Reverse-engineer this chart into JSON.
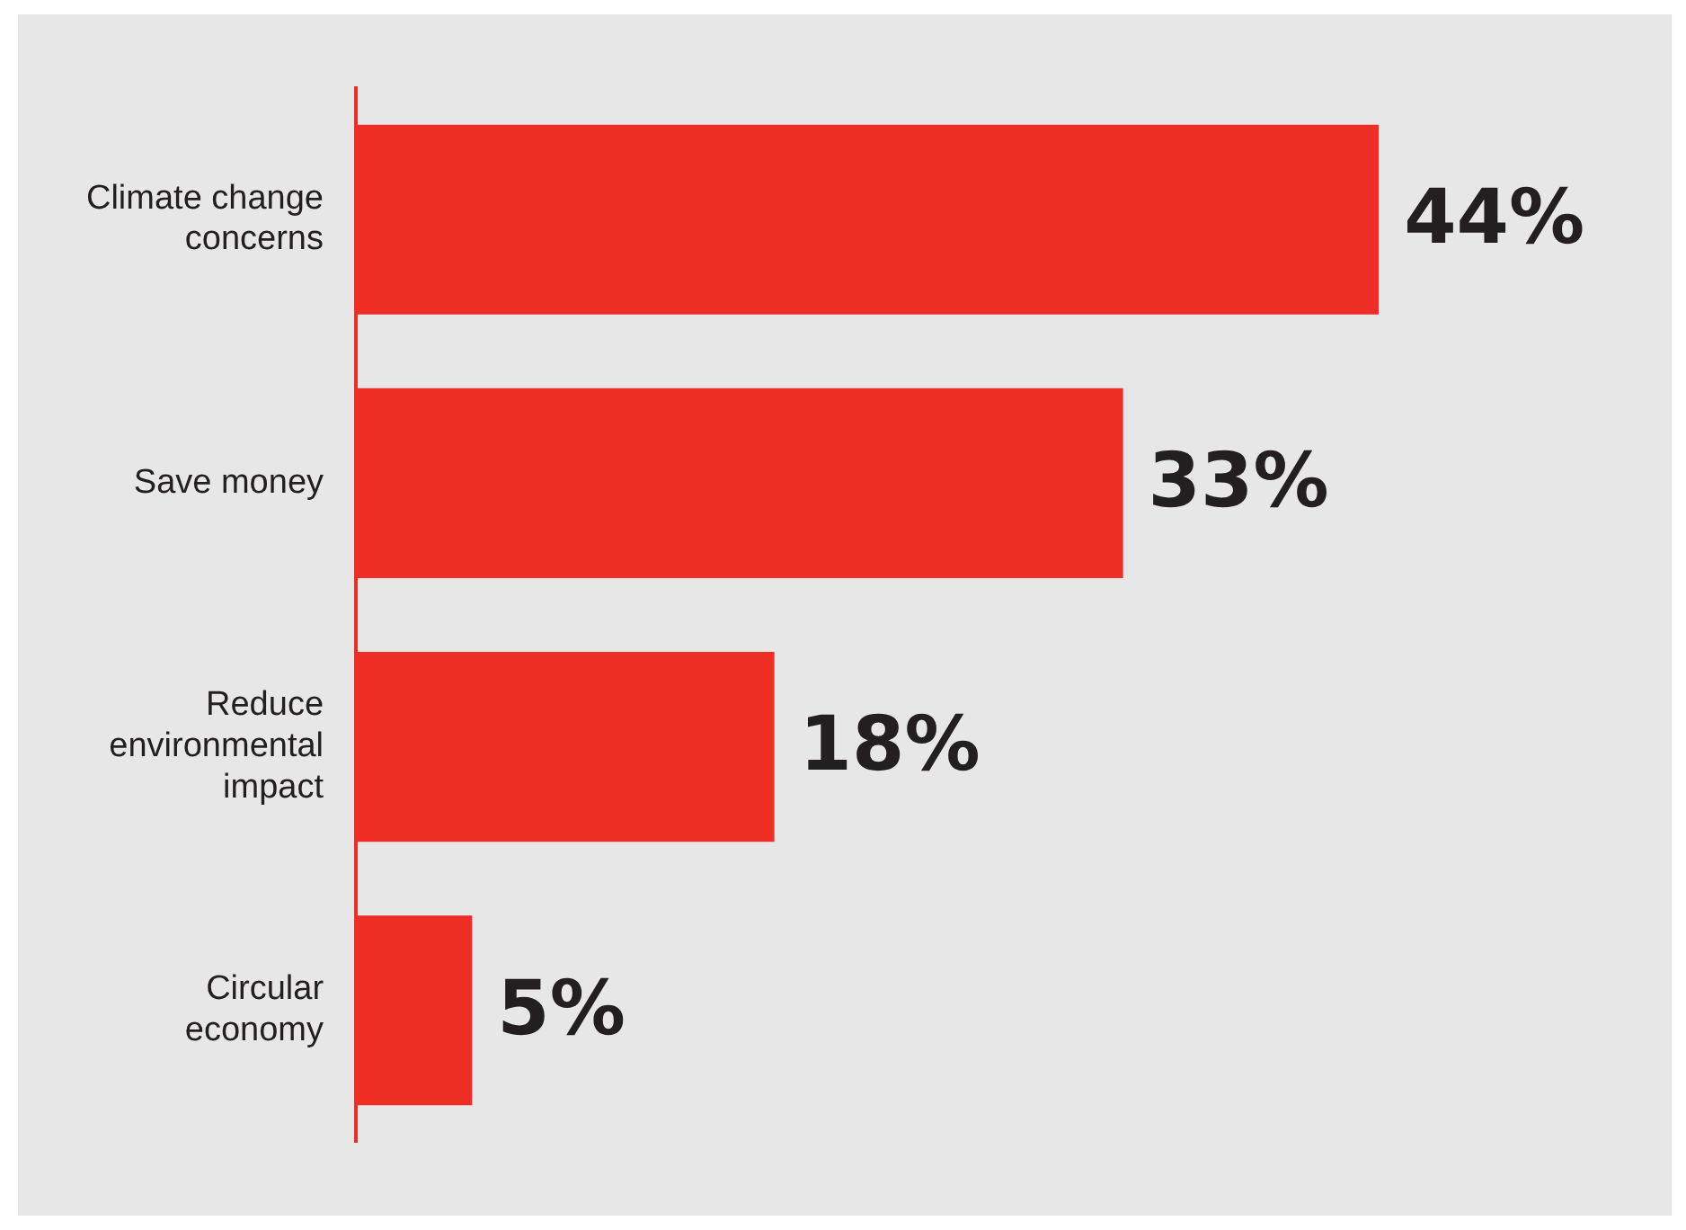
{
  "chart_data": {
    "type": "bar",
    "orientation": "horizontal",
    "categories": [
      "Climate change concerns",
      "Save money",
      "Reduce environmental impact",
      "Circular economy"
    ],
    "values": [
      44,
      33,
      18,
      5
    ],
    "color": "#ee2e24",
    "value_labels": [
      "44%",
      "33%",
      "18%",
      "5%"
    ],
    "grid": false,
    "legend": false,
    "tick_labels": "y"
  }
}
